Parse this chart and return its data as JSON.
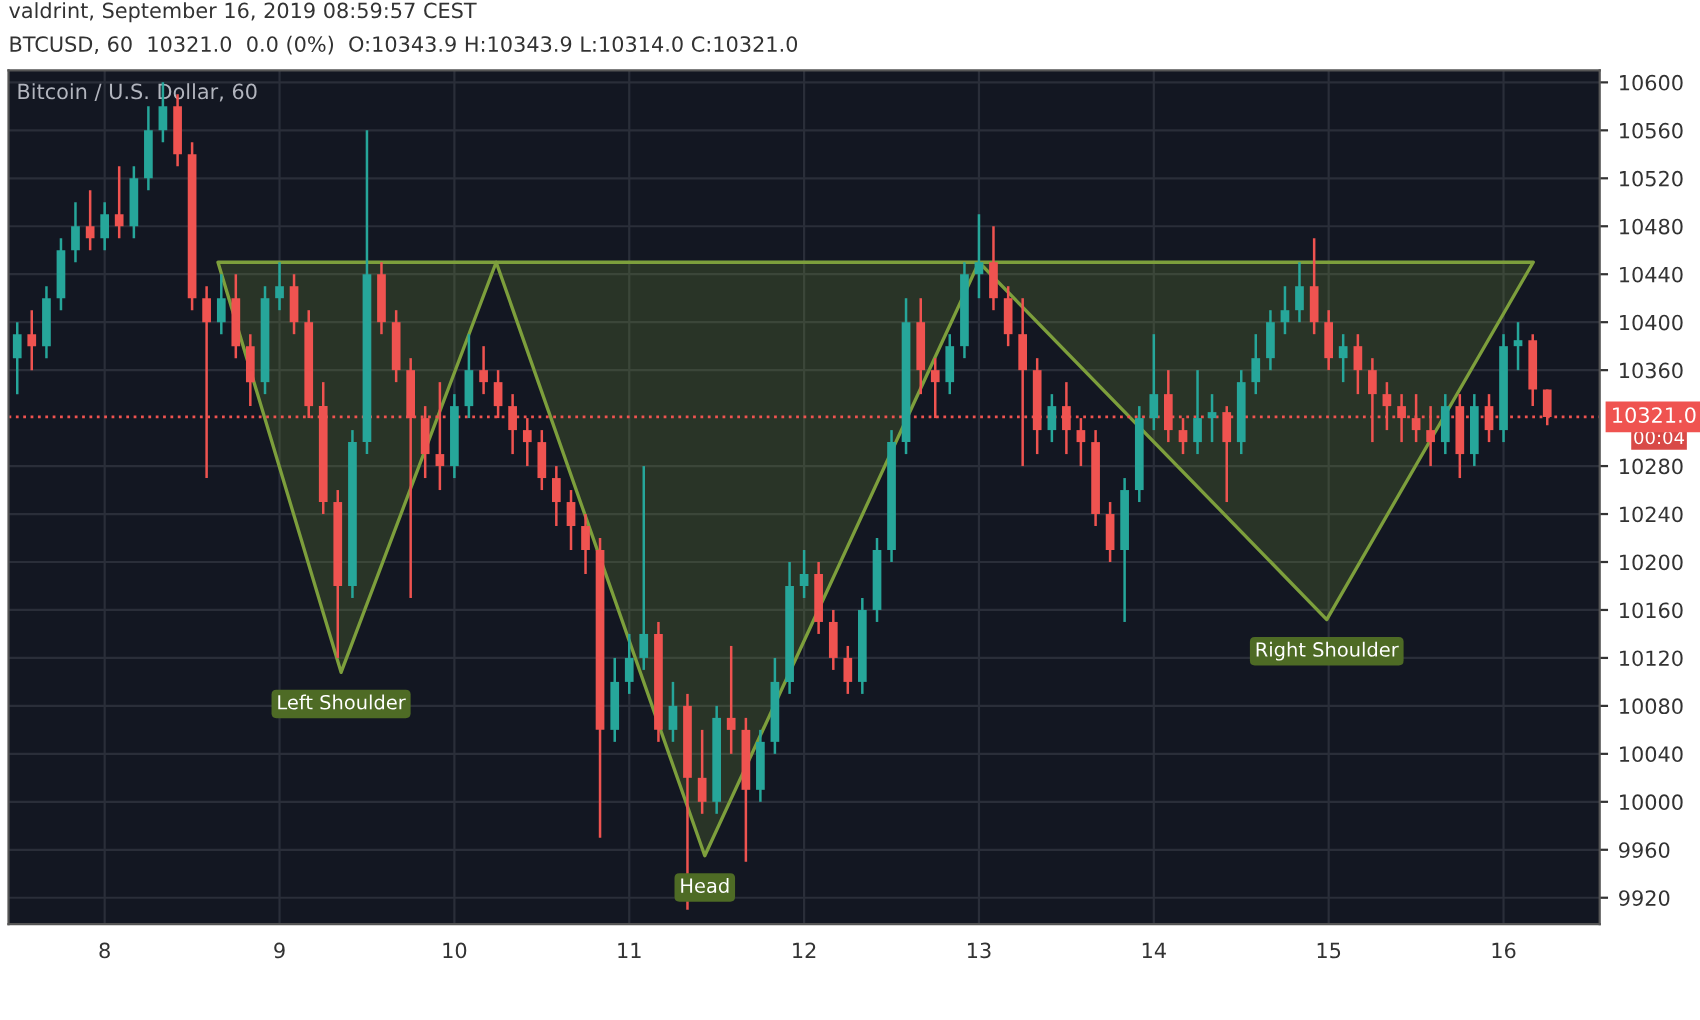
{
  "chart_data": {
    "type": "candlestick",
    "title": "Bitcoin / U.S. Dollar, 60",
    "subtitle": "BTCUSD, 60  10321.0  0.0 (0%)  O:10343.9 H:10343.9 L:10314.0 C:10321.0",
    "x": [
      7.5,
      7.583,
      7.667,
      7.75,
      7.833,
      7.917,
      8,
      8.083,
      8.167,
      8.25,
      8.333,
      8.417,
      8.5,
      8.583,
      8.667,
      8.75,
      8.833,
      8.917,
      9,
      9.083,
      9.167,
      9.25,
      9.333,
      9.417,
      9.5,
      9.583,
      9.667,
      9.75,
      9.833,
      9.917,
      10,
      10.083,
      10.167,
      10.25,
      10.333,
      10.417,
      10.5,
      10.583,
      10.667,
      10.75,
      10.833,
      10.917,
      11,
      11.083,
      11.167,
      11.25,
      11.333,
      11.417,
      11.5,
      11.583,
      11.667,
      11.75,
      11.833,
      11.917,
      12,
      12.083,
      12.167,
      12.25,
      12.333,
      12.417,
      12.5,
      12.583,
      12.667,
      12.75,
      12.833,
      12.917,
      13,
      13.083,
      13.167,
      13.25,
      13.333,
      13.417,
      13.5,
      13.583,
      13.667,
      13.75,
      13.833,
      13.917,
      14,
      14.083,
      14.167,
      14.25,
      14.333,
      14.417,
      14.5,
      14.583,
      14.667,
      14.75,
      14.833,
      14.917,
      15,
      15.083,
      15.167,
      15.25,
      15.333,
      15.417,
      15.5,
      15.583,
      15.667,
      15.75,
      15.833,
      15.917,
      16,
      16.083,
      16.167,
      16.25
    ],
    "ohlc": [
      [
        10370,
        10400,
        10340,
        10390
      ],
      [
        10390,
        10410,
        10360,
        10380
      ],
      [
        10380,
        10430,
        10370,
        10420
      ],
      [
        10420,
        10470,
        10410,
        10460
      ],
      [
        10460,
        10500,
        10450,
        10480
      ],
      [
        10480,
        10510,
        10460,
        10470
      ],
      [
        10470,
        10500,
        10460,
        10490
      ],
      [
        10490,
        10530,
        10470,
        10480
      ],
      [
        10480,
        10530,
        10470,
        10520
      ],
      [
        10520,
        10580,
        10510,
        10560
      ],
      [
        10560,
        10600,
        10550,
        10580
      ],
      [
        10580,
        10590,
        10530,
        10540
      ],
      [
        10540,
        10550,
        10410,
        10420
      ],
      [
        10420,
        10430,
        10270,
        10400
      ],
      [
        10400,
        10440,
        10390,
        10420
      ],
      [
        10420,
        10440,
        10370,
        10380
      ],
      [
        10380,
        10390,
        10330,
        10350
      ],
      [
        10350,
        10430,
        10340,
        10420
      ],
      [
        10420,
        10450,
        10410,
        10430
      ],
      [
        10430,
        10440,
        10390,
        10400
      ],
      [
        10400,
        10410,
        10320,
        10330
      ],
      [
        10330,
        10350,
        10240,
        10250
      ],
      [
        10250,
        10260,
        10120,
        10180
      ],
      [
        10180,
        10310,
        10170,
        10300
      ],
      [
        10300,
        10560,
        10290,
        10440
      ],
      [
        10440,
        10450,
        10390,
        10400
      ],
      [
        10400,
        10410,
        10350,
        10360
      ],
      [
        10360,
        10370,
        10170,
        10320
      ],
      [
        10320,
        10330,
        10270,
        10290
      ],
      [
        10290,
        10350,
        10260,
        10280
      ],
      [
        10280,
        10340,
        10270,
        10330
      ],
      [
        10330,
        10390,
        10320,
        10360
      ],
      [
        10360,
        10380,
        10340,
        10350
      ],
      [
        10350,
        10360,
        10320,
        10330
      ],
      [
        10330,
        10340,
        10290,
        10310
      ],
      [
        10310,
        10320,
        10280,
        10300
      ],
      [
        10300,
        10310,
        10260,
        10270
      ],
      [
        10270,
        10280,
        10230,
        10250
      ],
      [
        10250,
        10260,
        10210,
        10230
      ],
      [
        10230,
        10240,
        10190,
        10210
      ],
      [
        10210,
        10220,
        9970,
        10060
      ],
      [
        10060,
        10120,
        10050,
        10100
      ],
      [
        10100,
        10140,
        10090,
        10120
      ],
      [
        10120,
        10280,
        10110,
        10140
      ],
      [
        10140,
        10150,
        10050,
        10060
      ],
      [
        10060,
        10100,
        10050,
        10080
      ],
      [
        10080,
        10090,
        9910,
        10020
      ],
      [
        10020,
        10060,
        9990,
        10000
      ],
      [
        10000,
        10080,
        9990,
        10070
      ],
      [
        10070,
        10130,
        10040,
        10060
      ],
      [
        10060,
        10070,
        9950,
        10010
      ],
      [
        10010,
        10060,
        10000,
        10050
      ],
      [
        10050,
        10120,
        10040,
        10100
      ],
      [
        10100,
        10200,
        10090,
        10180
      ],
      [
        10180,
        10210,
        10170,
        10190
      ],
      [
        10190,
        10200,
        10140,
        10150
      ],
      [
        10150,
        10160,
        10110,
        10120
      ],
      [
        10120,
        10130,
        10090,
        10100
      ],
      [
        10100,
        10170,
        10090,
        10160
      ],
      [
        10160,
        10220,
        10150,
        10210
      ],
      [
        10210,
        10310,
        10200,
        10300
      ],
      [
        10300,
        10420,
        10290,
        10400
      ],
      [
        10400,
        10420,
        10340,
        10360
      ],
      [
        10360,
        10370,
        10320,
        10350
      ],
      [
        10350,
        10390,
        10340,
        10380
      ],
      [
        10380,
        10450,
        10370,
        10440
      ],
      [
        10440,
        10490,
        10420,
        10450
      ],
      [
        10450,
        10480,
        10410,
        10420
      ],
      [
        10420,
        10430,
        10380,
        10390
      ],
      [
        10390,
        10420,
        10280,
        10360
      ],
      [
        10360,
        10370,
        10290,
        10310
      ],
      [
        10310,
        10340,
        10300,
        10330
      ],
      [
        10330,
        10350,
        10290,
        10310
      ],
      [
        10310,
        10320,
        10280,
        10300
      ],
      [
        10300,
        10310,
        10230,
        10240
      ],
      [
        10240,
        10250,
        10200,
        10210
      ],
      [
        10210,
        10270,
        10150,
        10260
      ],
      [
        10260,
        10330,
        10250,
        10320
      ],
      [
        10320,
        10390,
        10310,
        10340
      ],
      [
        10340,
        10360,
        10300,
        10310
      ],
      [
        10310,
        10320,
        10290,
        10300
      ],
      [
        10300,
        10360,
        10290,
        10320
      ],
      [
        10320,
        10340,
        10300,
        10325
      ],
      [
        10325,
        10330,
        10250,
        10300
      ],
      [
        10300,
        10360,
        10290,
        10350
      ],
      [
        10350,
        10390,
        10340,
        10370
      ],
      [
        10370,
        10410,
        10360,
        10400
      ],
      [
        10400,
        10430,
        10390,
        10410
      ],
      [
        10410,
        10450,
        10400,
        10430
      ],
      [
        10430,
        10470,
        10390,
        10400
      ],
      [
        10400,
        10410,
        10360,
        10370
      ],
      [
        10370,
        10390,
        10350,
        10380
      ],
      [
        10380,
        10390,
        10340,
        10360
      ],
      [
        10360,
        10370,
        10300,
        10340
      ],
      [
        10340,
        10350,
        10310,
        10330
      ],
      [
        10330,
        10340,
        10300,
        10320
      ],
      [
        10320,
        10340,
        10300,
        10310
      ],
      [
        10310,
        10330,
        10280,
        10300
      ],
      [
        10300,
        10340,
        10290,
        10330
      ],
      [
        10330,
        10340,
        10270,
        10290
      ],
      [
        10290,
        10340,
        10280,
        10330
      ],
      [
        10330,
        10340,
        10300,
        10310
      ],
      [
        10310,
        10390,
        10300,
        10380
      ],
      [
        10380,
        10400,
        10360,
        10385
      ],
      [
        10385,
        10390,
        10330,
        10343.9
      ],
      [
        10343.9,
        10343.9,
        10314.0,
        10321.0
      ]
    ],
    "colors": [
      "#26a69a",
      "#ef5350",
      "#26a69a",
      "#26a69a",
      "#26a69a",
      "#ef5350",
      "#26a69a",
      "#ef5350",
      "#26a69a",
      "#26a69a",
      "#26a69a",
      "#ef5350",
      "#ef5350",
      "#ef5350",
      "#26a69a",
      "#ef5350",
      "#ef5350",
      "#26a69a",
      "#26a69a",
      "#ef5350",
      "#ef5350",
      "#ef5350",
      "#ef5350",
      "#26a69a",
      "#26a69a",
      "#ef5350",
      "#ef5350",
      "#ef5350",
      "#ef5350",
      "#ef5350",
      "#26a69a",
      "#26a69a",
      "#ef5350",
      "#ef5350",
      "#ef5350",
      "#ef5350",
      "#ef5350",
      "#ef5350",
      "#ef5350",
      "#ef5350",
      "#ef5350",
      "#26a69a",
      "#26a69a",
      "#26a69a",
      "#ef5350",
      "#26a69a",
      "#ef5350",
      "#ef5350",
      "#26a69a",
      "#ef5350",
      "#ef5350",
      "#26a69a",
      "#26a69a",
      "#26a69a",
      "#26a69a",
      "#ef5350",
      "#ef5350",
      "#ef5350",
      "#26a69a",
      "#26a69a",
      "#26a69a",
      "#26a69a",
      "#ef5350",
      "#ef5350",
      "#26a69a",
      "#26a69a",
      "#26a69a",
      "#ef5350",
      "#ef5350",
      "#ef5350",
      "#ef5350",
      "#26a69a",
      "#ef5350",
      "#ef5350",
      "#ef5350",
      "#ef5350",
      "#26a69a",
      "#26a69a",
      "#26a69a",
      "#ef5350",
      "#ef5350",
      "#26a69a",
      "#26a69a",
      "#ef5350",
      "#26a69a",
      "#26a69a",
      "#26a69a",
      "#26a69a",
      "#26a69a",
      "#ef5350",
      "#ef5350",
      "#26a69a",
      "#ef5350",
      "#ef5350",
      "#ef5350",
      "#ef5350",
      "#ef5350",
      "#ef5350",
      "#26a69a",
      "#ef5350",
      "#26a69a",
      "#ef5350",
      "#26a69a",
      "#26a69a",
      "#ef5350",
      "#ef5350"
    ],
    "series": [
      {
        "type": "area",
        "color": "#7d9f3c",
        "x": [
          8.648,
          9.352,
          10.239,
          8.648
        ],
        "values": [
          10450,
          10108,
          10450,
          10450
        ]
      },
      {
        "type": "area",
        "color": "#7d9f3c",
        "x": [
          10.239,
          11.432,
          13.0,
          10.239
        ],
        "values": [
          10450,
          9955,
          10450,
          10450
        ]
      },
      {
        "type": "area",
        "color": "#7d9f3c",
        "x": [
          13.0,
          14.989,
          16.17,
          13.0
        ],
        "values": [
          10450,
          10152,
          10450,
          10450
        ]
      }
    ],
    "annotations": [
      {
        "text": "Left Shoulder",
        "x": 9.352,
        "y": 10108
      },
      {
        "text": "Head",
        "x": 11.432,
        "y": 9955
      },
      {
        "text": "Right Shoulder",
        "x": 14.989,
        "y": 10152
      },
      "valdrint, September 16, 2019 08:59:57 CEST",
      "00:04"
    ],
    "ref_lines": [
      {
        "axis": "y",
        "value": 10321.0,
        "label": "10321.0",
        "color": "#ef5350",
        "line_style": "dotted"
      }
    ],
    "xlim": [
      7.45,
      16.55
    ],
    "ylim": [
      9898,
      10610
    ],
    "xticks": [
      8,
      9,
      10,
      11,
      12,
      13,
      14,
      15,
      16
    ],
    "yticks": [
      9920,
      9960,
      10000,
      10040,
      10080,
      10120,
      10160,
      10200,
      10240,
      10280,
      10360,
      10400,
      10440,
      10480,
      10520,
      10560,
      10600
    ],
    "grid": true,
    "legend": false
  }
}
